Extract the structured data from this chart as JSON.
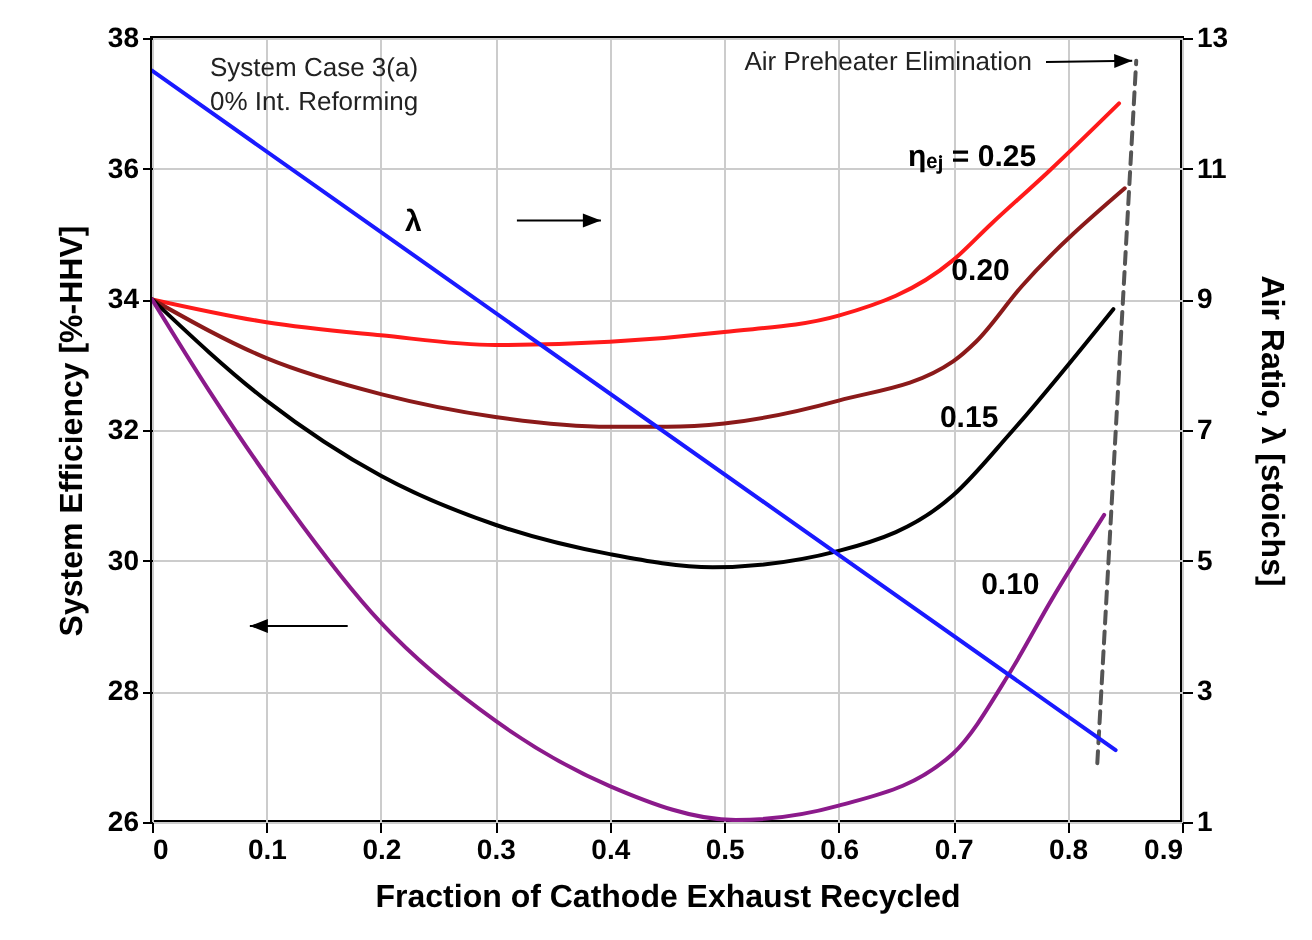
{
  "chart_data": {
    "type": "line",
    "xlabel": "Fraction of Cathode Exhaust Recycled",
    "ylabel": "System Efficiency [%-HHV]",
    "y2label": "Air Ratio, λ [stoichs]",
    "xlim": [
      0,
      0.9
    ],
    "xticks": [
      0,
      0.1,
      0.2,
      0.3,
      0.4,
      0.5,
      0.6,
      0.7,
      0.8,
      0.9
    ],
    "ylim": [
      26,
      38
    ],
    "yticks": [
      26,
      28,
      30,
      32,
      34,
      36,
      38
    ],
    "y2lim": [
      1,
      13
    ],
    "y2ticks": [
      1,
      3,
      5,
      7,
      9,
      11,
      13
    ],
    "grid": true,
    "annotations": [
      "System Case 3(a)",
      "0% Int. Reforming",
      "Air Preheater Elimination"
    ],
    "series": [
      {
        "name": "ηₑⱼ = 0.25",
        "color": "#ff1a1a",
        "x": [
          0,
          0.1,
          0.2,
          0.3,
          0.4,
          0.5,
          0.6,
          0.7,
          0.733,
          0.783,
          0.845
        ],
        "values": [
          34,
          33.65,
          33.45,
          33.3,
          33.35,
          33.5,
          33.75,
          34.6,
          35.15,
          35.95,
          37.0
        ]
      },
      {
        "name": "0.20",
        "color": "#8b1a1a",
        "x": [
          0,
          0.1,
          0.2,
          0.3,
          0.4,
          0.45,
          0.5,
          0.6,
          0.7,
          0.72,
          0.76,
          0.85
        ],
        "values": [
          34,
          33.1,
          32.55,
          32.2,
          32.05,
          32.05,
          32.1,
          32.45,
          33.05,
          33.35,
          34.2,
          35.7
        ]
      },
      {
        "name": "0.15",
        "color": "#000000",
        "x": [
          0,
          0.1,
          0.2,
          0.3,
          0.4,
          0.49,
          0.6,
          0.7,
          0.75,
          0.84
        ],
        "values": [
          34,
          32.45,
          31.3,
          30.55,
          30.1,
          29.9,
          30.15,
          31.0,
          31.95,
          33.85
        ]
      },
      {
        "name": "0.10",
        "color": "#8b1a8b",
        "x": [
          0,
          0.05,
          0.1,
          0.2,
          0.3,
          0.4,
          0.51,
          0.6,
          0.7,
          0.75,
          0.786,
          0.832
        ],
        "values": [
          34,
          32.6,
          31.3,
          29.05,
          27.55,
          26.55,
          26.03,
          26.25,
          27.05,
          28.3,
          29.4,
          30.7
        ]
      },
      {
        "name": "λ",
        "color": "#1a1aff",
        "axis": "y2",
        "x": [
          0,
          0.842
        ],
        "values": [
          12.5,
          2.1
        ]
      },
      {
        "color": "#555555",
        "line_style": "dashed",
        "x": [
          0.826,
          0.86
        ],
        "values": [
          26.9,
          37.65
        ]
      }
    ]
  }
}
